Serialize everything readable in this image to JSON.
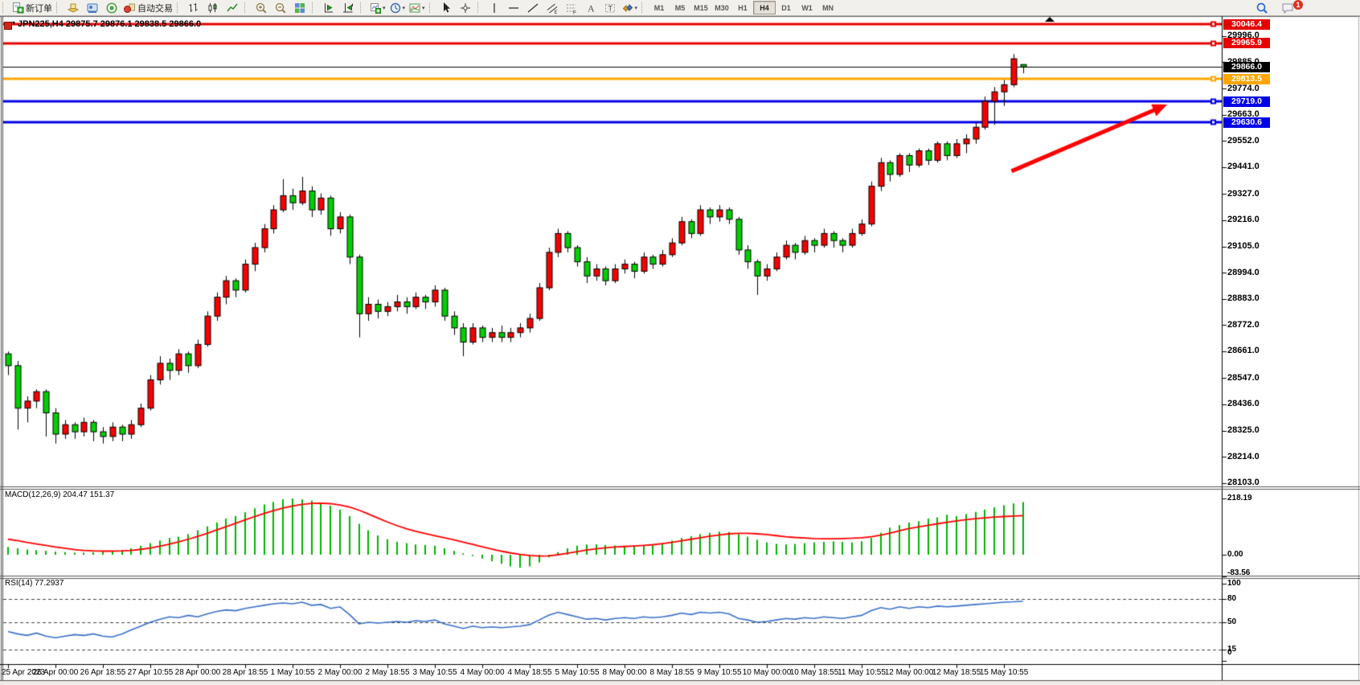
{
  "toolbar": {
    "groups": [
      {
        "items": [
          {
            "icon": "new-order-icon",
            "label": "新订单"
          }
        ]
      },
      {
        "items": [
          {
            "icon": "market-watch-icon"
          },
          {
            "icon": "data-window-icon"
          },
          {
            "icon": "sound-alert-icon"
          },
          {
            "icon": "autotrade-icon",
            "label": "自动交易"
          }
        ]
      },
      {
        "items": [
          {
            "icon": "bar-chart-icon"
          },
          {
            "icon": "candlestick-icon"
          },
          {
            "icon": "line-chart-icon"
          }
        ]
      },
      {
        "items": [
          {
            "icon": "zoom-in-icon"
          },
          {
            "icon": "zoom-out-icon"
          },
          {
            "icon": "tile-windows-icon"
          }
        ]
      },
      {
        "items": [
          {
            "icon": "auto-scroll-icon"
          },
          {
            "icon": "chart-shift-icon"
          }
        ]
      },
      {
        "items": [
          {
            "icon": "new-chart-icon",
            "dropdown": true
          },
          {
            "icon": "periods-icon",
            "dropdown": true
          },
          {
            "icon": "templates-icon",
            "dropdown": true
          }
        ]
      },
      {
        "items": [
          {
            "icon": "cursor-icon"
          },
          {
            "icon": "crosshair-icon"
          }
        ]
      },
      {
        "items": [
          {
            "icon": "vertical-line-icon"
          },
          {
            "icon": "horizontal-line-icon"
          },
          {
            "icon": "trendline-icon"
          },
          {
            "icon": "channel-icon"
          },
          {
            "icon": "fibonacci-icon"
          },
          {
            "icon": "text-icon"
          },
          {
            "icon": "label-icon"
          },
          {
            "icon": "arrows-icon",
            "dropdown": true
          }
        ]
      }
    ],
    "timeframes": {
      "items": [
        "M1",
        "M5",
        "M15",
        "M30",
        "H1",
        "H4",
        "D1",
        "W1",
        "MN"
      ],
      "active": "H4"
    },
    "right": {
      "badge": "1"
    }
  },
  "chart": {
    "title": "JPN225,H4 29875.7 29876.1 29838.5 29866.0",
    "colors": {
      "up": "#f80000",
      "down": "#00d000",
      "outline": "#000000",
      "wick": "#000000"
    }
  },
  "chart_data": [
    {
      "pane": "price",
      "type": "candlestick",
      "price_range": [
        28092,
        30074
      ],
      "ticks": [
        29996.0,
        29885.0,
        29774.0,
        29663.0,
        29552.0,
        29441.0,
        29327.0,
        29216.0,
        29105.0,
        28994.0,
        28883.0,
        28772.0,
        28661.0,
        28547.0,
        28436.0,
        28325.0,
        28214.0,
        28103.0
      ],
      "lines": [
        {
          "price": 30046.4,
          "color": "#e60000",
          "width": 3,
          "label": "30046.4"
        },
        {
          "price": 29965.9,
          "color": "#e60000",
          "width": 3,
          "label": "29965.9"
        },
        {
          "price": 29866.0,
          "color": "#000000",
          "width": 1,
          "label": "29866.0",
          "current": true
        },
        {
          "price": 29813.5,
          "color": "#ffa600",
          "width": 3,
          "label": "29813.5"
        },
        {
          "price": 29719.0,
          "color": "#0000e6",
          "width": 3,
          "label": "29719.0"
        },
        {
          "price": 29630.6,
          "color": "#0000e6",
          "width": 3,
          "label": "29630.6"
        }
      ],
      "annotation_arrow": {
        "from_bar": 105.8,
        "from_price": 29424,
        "to_bar": 122.2,
        "to_price": 29706,
        "color": "#ff0000"
      },
      "candles": [
        [
          28650,
          28660,
          28560,
          28600
        ],
        [
          28600,
          28620,
          28330,
          28420
        ],
        [
          28420,
          28470,
          28360,
          28450
        ],
        [
          28450,
          28500,
          28420,
          28490
        ],
        [
          28490,
          28500,
          28300,
          28400
        ],
        [
          28400,
          28420,
          28270,
          28310
        ],
        [
          28310,
          28370,
          28290,
          28350
        ],
        [
          28350,
          28360,
          28290,
          28320
        ],
        [
          28320,
          28380,
          28300,
          28360
        ],
        [
          28360,
          28370,
          28280,
          28320
        ],
        [
          28320,
          28340,
          28270,
          28300
        ],
        [
          28300,
          28360,
          28280,
          28340
        ],
        [
          28340,
          28350,
          28280,
          28310
        ],
        [
          28310,
          28370,
          28290,
          28350
        ],
        [
          28350,
          28440,
          28340,
          28420
        ],
        [
          28420,
          28560,
          28410,
          28540
        ],
        [
          28540,
          28640,
          28520,
          28610
        ],
        [
          28610,
          28630,
          28540,
          28580
        ],
        [
          28580,
          28670,
          28560,
          28650
        ],
        [
          28650,
          28660,
          28570,
          28600
        ],
        [
          28600,
          28710,
          28590,
          28690
        ],
        [
          28690,
          28830,
          28680,
          28810
        ],
        [
          28810,
          28910,
          28790,
          28890
        ],
        [
          28890,
          28980,
          28860,
          28960
        ],
        [
          28960,
          28970,
          28890,
          28920
        ],
        [
          28920,
          29050,
          28910,
          29030
        ],
        [
          29030,
          29120,
          29000,
          29100
        ],
        [
          29100,
          29200,
          29080,
          29180
        ],
        [
          29180,
          29280,
          29160,
          29260
        ],
        [
          29260,
          29390,
          29250,
          29320
        ],
        [
          29320,
          29350,
          29260,
          29290
        ],
        [
          29290,
          29400,
          29280,
          29340
        ],
        [
          29340,
          29360,
          29230,
          29260
        ],
        [
          29260,
          29330,
          29240,
          29310
        ],
        [
          29310,
          29320,
          29150,
          29180
        ],
        [
          29180,
          29250,
          29160,
          29230
        ],
        [
          29230,
          29240,
          29030,
          29060
        ],
        [
          29060,
          29070,
          28720,
          28820
        ],
        [
          28820,
          28890,
          28790,
          28860
        ],
        [
          28860,
          28880,
          28800,
          28830
        ],
        [
          28830,
          28870,
          28810,
          28850
        ],
        [
          28850,
          28900,
          28830,
          28870
        ],
        [
          28870,
          28890,
          28820,
          28850
        ],
        [
          28850,
          28910,
          28840,
          28890
        ],
        [
          28890,
          28900,
          28840,
          28870
        ],
        [
          28870,
          28940,
          28850,
          28920
        ],
        [
          28920,
          28930,
          28790,
          28810
        ],
        [
          28810,
          28830,
          28730,
          28760
        ],
        [
          28760,
          28780,
          28640,
          28700
        ],
        [
          28700,
          28780,
          28690,
          28760
        ],
        [
          28760,
          28770,
          28700,
          28720
        ],
        [
          28720,
          28760,
          28700,
          28740
        ],
        [
          28740,
          28770,
          28700,
          28720
        ],
        [
          28720,
          28760,
          28700,
          28740
        ],
        [
          28740,
          28780,
          28720,
          28760
        ],
        [
          28760,
          28820,
          28740,
          28800
        ],
        [
          28800,
          28950,
          28790,
          28930
        ],
        [
          28930,
          29100,
          28920,
          29080
        ],
        [
          29080,
          29180,
          29060,
          29160
        ],
        [
          29160,
          29170,
          29080,
          29100
        ],
        [
          29100,
          29110,
          29020,
          29040
        ],
        [
          29040,
          29060,
          28950,
          28980
        ],
        [
          28980,
          29030,
          28960,
          29010
        ],
        [
          29010,
          29020,
          28940,
          28960
        ],
        [
          28960,
          29030,
          28950,
          29010
        ],
        [
          29010,
          29050,
          28990,
          29030
        ],
        [
          29030,
          29040,
          28970,
          29000
        ],
        [
          29000,
          29080,
          28990,
          29060
        ],
        [
          29060,
          29070,
          29010,
          29030
        ],
        [
          29030,
          29090,
          29020,
          29070
        ],
        [
          29070,
          29140,
          29060,
          29120
        ],
        [
          29120,
          29230,
          29110,
          29210
        ],
        [
          29210,
          29220,
          29140,
          29160
        ],
        [
          29160,
          29280,
          29150,
          29260
        ],
        [
          29260,
          29270,
          29200,
          29230
        ],
        [
          29230,
          29280,
          29210,
          29260
        ],
        [
          29260,
          29270,
          29200,
          29220
        ],
        [
          29220,
          29230,
          29070,
          29090
        ],
        [
          29090,
          29110,
          29010,
          29040
        ],
        [
          29040,
          29050,
          28900,
          28980
        ],
        [
          28980,
          29030,
          28960,
          29010
        ],
        [
          29010,
          29080,
          29000,
          29060
        ],
        [
          29060,
          29130,
          29050,
          29110
        ],
        [
          29110,
          29120,
          29050,
          29080
        ],
        [
          29080,
          29150,
          29070,
          29130
        ],
        [
          29130,
          29140,
          29080,
          29110
        ],
        [
          29110,
          29180,
          29100,
          29160
        ],
        [
          29160,
          29170,
          29100,
          29130
        ],
        [
          29130,
          29140,
          29080,
          29110
        ],
        [
          29110,
          29180,
          29100,
          29160
        ],
        [
          29160,
          29220,
          29150,
          29200
        ],
        [
          29200,
          29380,
          29190,
          29360
        ],
        [
          29360,
          29480,
          29340,
          29460
        ],
        [
          29460,
          29470,
          29380,
          29410
        ],
        [
          29410,
          29500,
          29400,
          29490
        ],
        [
          29490,
          29500,
          29420,
          29450
        ],
        [
          29450,
          29520,
          29440,
          29510
        ],
        [
          29510,
          29520,
          29450,
          29470
        ],
        [
          29470,
          29550,
          29460,
          29540
        ],
        [
          29540,
          29550,
          29470,
          29490
        ],
        [
          29490,
          29560,
          29480,
          29540
        ],
        [
          29540,
          29580,
          29500,
          29560
        ],
        [
          29560,
          29630,
          29540,
          29610
        ],
        [
          29610,
          29740,
          29600,
          29720
        ],
        [
          29720,
          29780,
          29620,
          29760
        ],
        [
          29760,
          29810,
          29700,
          29790
        ],
        [
          29790,
          29920,
          29780,
          29900
        ],
        [
          29875.7,
          29876.1,
          29838.5,
          29866.0
        ]
      ]
    },
    {
      "pane": "macd",
      "type": "histogram_line",
      "label": "MACD(12,26,9) 204.47 151.37",
      "axis": [
        "218.19",
        "0.00",
        "-83.56"
      ],
      "colors": {
        "histogram": "#00b400",
        "signal": "#ff0000"
      },
      "histogram": [
        30,
        25,
        20,
        18,
        15,
        12,
        10,
        8,
        8,
        10,
        12,
        15,
        18,
        25,
        35,
        45,
        55,
        65,
        70,
        80,
        95,
        110,
        125,
        140,
        150,
        165,
        180,
        195,
        205,
        215,
        218.19,
        215,
        210,
        200,
        190,
        175,
        150,
        120,
        95,
        75,
        60,
        50,
        45,
        40,
        38,
        35,
        25,
        15,
        5,
        -5,
        -15,
        -25,
        -35,
        -45,
        -50,
        -45,
        -30,
        -10,
        10,
        25,
        35,
        40,
        40,
        38,
        36,
        35,
        36,
        38,
        40,
        45,
        55,
        65,
        72,
        80,
        85,
        90,
        88,
        80,
        70,
        58,
        48,
        42,
        40,
        42,
        45,
        48,
        50,
        52,
        50,
        48,
        52,
        65,
        85,
        105,
        115,
        125,
        130,
        140,
        145,
        155,
        150,
        158,
        166,
        175,
        184,
        192,
        199,
        204.47
      ],
      "signal": [
        60,
        55,
        48,
        42,
        36,
        30,
        25,
        20,
        17,
        15,
        14,
        14,
        15,
        17,
        21,
        26,
        33,
        41,
        50,
        60,
        71,
        83,
        96,
        109,
        122,
        135,
        148,
        160,
        171,
        181,
        189,
        195,
        199,
        200,
        198,
        193,
        185,
        173,
        158,
        142,
        127,
        113,
        101,
        91,
        82,
        74,
        66,
        58,
        49,
        40,
        31,
        22,
        14,
        7,
        1,
        -3,
        -5,
        -4,
        0,
        6,
        12,
        18,
        23,
        27,
        30,
        32,
        34,
        36,
        39,
        43,
        48,
        54,
        60,
        66,
        72,
        77,
        81,
        83,
        83,
        81,
        78,
        74,
        70,
        67,
        65,
        63,
        62,
        62,
        63,
        64,
        66,
        70,
        76,
        84,
        93,
        102,
        108,
        114,
        120,
        126,
        131,
        136,
        140,
        143,
        146,
        148,
        150,
        151.37
      ]
    },
    {
      "pane": "rsi",
      "type": "line",
      "label": "RSI(14) 77.2937",
      "axis": [
        "100",
        "80",
        "50",
        "15",
        "0"
      ],
      "levels": [
        80,
        50,
        15
      ],
      "range": [
        0,
        100
      ],
      "color": "#3a6fc8",
      "values": [
        38,
        35,
        33,
        36,
        32,
        30,
        32,
        34,
        33,
        35,
        32,
        31,
        35,
        40,
        45,
        50,
        54,
        57,
        56,
        59,
        57,
        61,
        64,
        66,
        65,
        68,
        70,
        72,
        74,
        75,
        74,
        76,
        72,
        73,
        68,
        70,
        60,
        48,
        50,
        49,
        50,
        51,
        50,
        52,
        51,
        53,
        48,
        45,
        42,
        45,
        43,
        44,
        43,
        44,
        45,
        47,
        53,
        59,
        63,
        60,
        57,
        54,
        55,
        53,
        55,
        56,
        55,
        57,
        56,
        57,
        59,
        62,
        60,
        63,
        62,
        63,
        61,
        55,
        53,
        50,
        51,
        53,
        55,
        54,
        56,
        55,
        57,
        56,
        55,
        57,
        59,
        65,
        69,
        67,
        70,
        68,
        70,
        69,
        71,
        70,
        71,
        72,
        73,
        74,
        75,
        76,
        76.5,
        77.29
      ]
    }
  ],
  "time_axis": {
    "bars_per_label": 5,
    "labels": [
      "25 Apr 2023",
      "26 Apr 00:00",
      "26 Apr 18:55",
      "27 Apr 10:55",
      "28 Apr 00:00",
      "28 Apr 18:55",
      "1 May 10:55",
      "2 May 00:00",
      "2 May 18:55",
      "3 May 10:55",
      "4 May 00:00",
      "4 May 18:55",
      "5 May 10:55",
      "8 May 00:00",
      "8 May 18:55",
      "9 May 10:55",
      "10 May 00:00",
      "10 May 18:55",
      "11 May 10:55",
      "12 May 00:00",
      "12 May 18:55",
      "15 May 10:55"
    ]
  }
}
